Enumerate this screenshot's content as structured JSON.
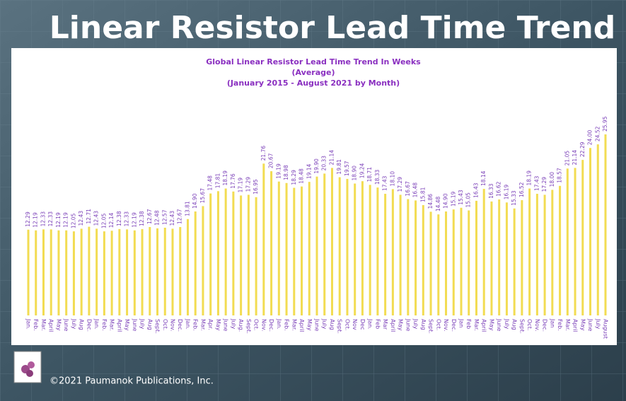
{
  "header": {
    "title": "Linear Resistor Lead Time Trend"
  },
  "chart_data": {
    "type": "bar",
    "title": "Global Linear Resistor Lead Time Trend In Weeks",
    "subtitle": "(Average)",
    "subtitle2": "(January 2015 - August 2021 by Month)",
    "color": "#f2dc52",
    "categories": [
      "Jan.",
      "Feb.",
      "Mar.",
      "April",
      "May",
      "June",
      "July",
      "Aug",
      "Dec.",
      "Jan.",
      "Feb.",
      "Mar.",
      "April",
      "May",
      "June",
      "July",
      "Aug",
      "Sept.",
      "Oct.",
      "Nov.",
      "Dec.",
      "Jan.",
      "Feb.",
      "Mar.",
      "Apr.",
      "May",
      "June",
      "July",
      "Aug.",
      "Sept.",
      "Oct.",
      "Nov.",
      "Dec.",
      "Jan.",
      "Feb.",
      "Mar.",
      "April",
      "May",
      "June",
      "July",
      "Aug",
      "Sept.",
      "Oct.",
      "Nov",
      "Dec",
      "Jan.",
      "Feb",
      "Mar",
      "April",
      "May",
      "June",
      "July",
      "Aug",
      "Sept.",
      "Oct.",
      "Nov.",
      "Dec.",
      "Jan",
      "Feb",
      "Mar.",
      "April",
      "May",
      "June",
      "July",
      "Aug",
      "Sept.",
      "Oct.",
      "Nov.",
      "Dec.",
      "Jan",
      "Feb.",
      "Mar.",
      "April",
      "May",
      "June",
      "July",
      "August"
    ],
    "values": [
      12.29,
      12.19,
      12.33,
      12.33,
      12.19,
      12.19,
      12.05,
      12.43,
      12.71,
      12.43,
      12.05,
      12.14,
      12.38,
      12.33,
      12.19,
      12.38,
      12.67,
      12.48,
      12.57,
      12.43,
      12.67,
      13.81,
      14.9,
      15.67,
      17.48,
      17.81,
      18.19,
      17.76,
      17.19,
      17.29,
      16.95,
      21.76,
      20.67,
      19.19,
      18.98,
      18.29,
      18.48,
      19.14,
      19.9,
      20.33,
      21.14,
      19.81,
      19.57,
      18.9,
      19.24,
      18.71,
      18.33,
      17.43,
      18.1,
      17.29,
      16.67,
      16.48,
      15.81,
      14.86,
      14.48,
      14.9,
      15.19,
      15.43,
      15.05,
      16.43,
      18.14,
      16.33,
      16.62,
      16.19,
      15.33,
      16.52,
      18.19,
      17.43,
      17.29,
      18,
      18.57,
      21.05,
      21.14,
      22.29,
      24,
      24.52,
      25.95
    ],
    "value_labels": [
      "12.29",
      "12.19",
      "12.33",
      "12.33",
      "12.19",
      "12.19",
      "12.05",
      "12.43",
      "12.71",
      "12.43",
      "12.05",
      "12.14",
      "12.38",
      "12.33",
      "12.19",
      "12.38",
      "12.67",
      "12.48",
      "12.57",
      "12.43",
      "12.67",
      "13.81",
      "14.90",
      "15.67",
      "17.48",
      "17.81",
      "18.19",
      "17.76",
      "17.19",
      "17.29",
      "16.95",
      "21.76",
      "20.67",
      "19.19",
      "18.98",
      "18.29",
      "18.48",
      "19.14",
      "19.90",
      "20.33",
      "21.14",
      "19.81",
      "19.57",
      "18.90",
      "19.24",
      "18.71",
      "18.33",
      "17.43",
      "18.10",
      "17.29",
      "16.67",
      "16.48",
      "15.81",
      "14.86",
      "14.48",
      "14.90",
      "15.19",
      "15.43",
      "15.05",
      "16.43",
      "18.14",
      "16.33",
      "16.62",
      "16.19",
      "15.33",
      "16.52",
      "18.19",
      "17.43",
      "17.29",
      "18.00",
      "18.57",
      "21.05",
      "21.14",
      "22.29",
      "24.00",
      "24.52",
      "25.95"
    ]
  },
  "footer": {
    "copyright": "©2021 Paumanok Publications, Inc."
  }
}
